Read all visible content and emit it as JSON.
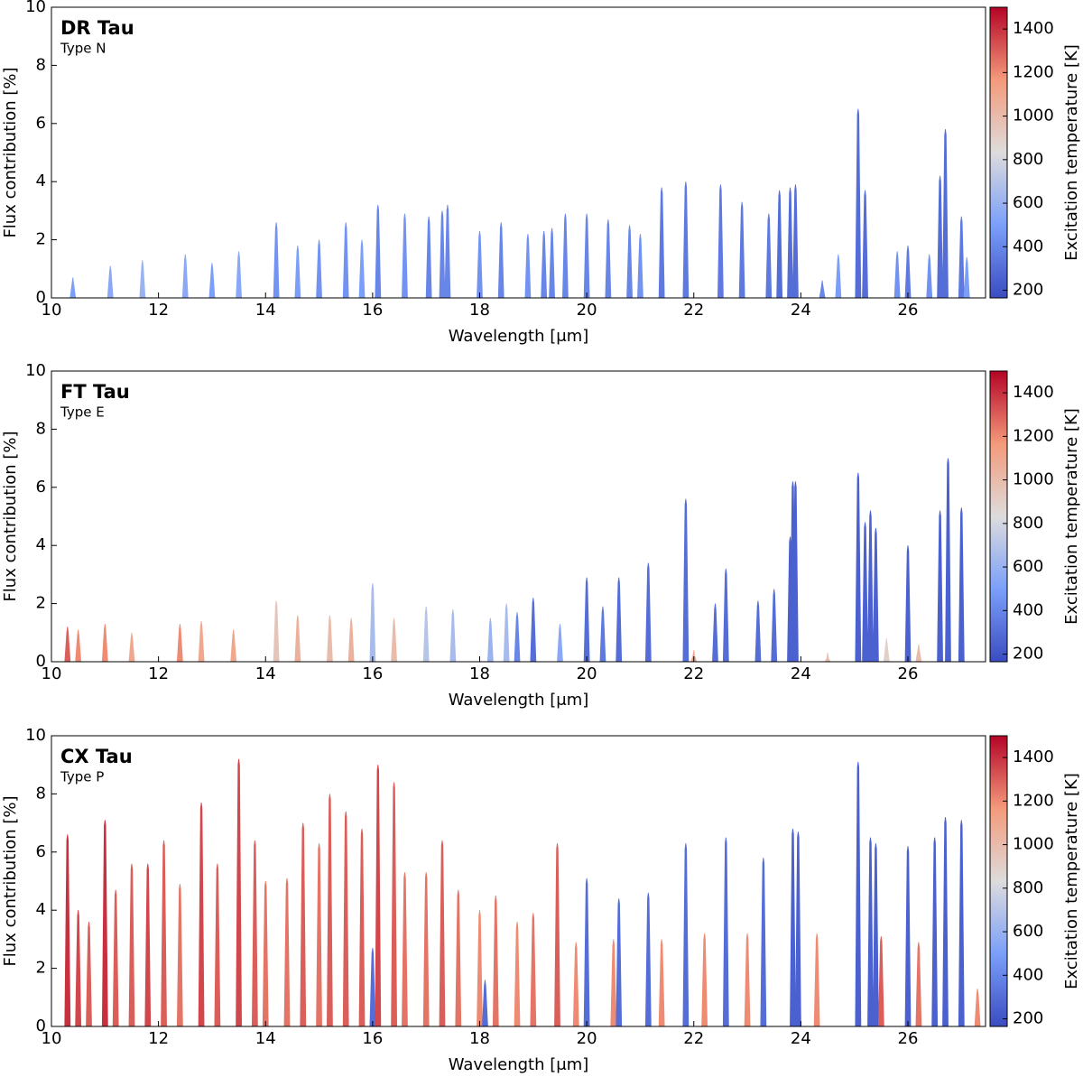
{
  "chart_data": [
    {
      "type": "spectrum",
      "title": "DR Tau",
      "subtitle": "Type N",
      "x_label": "Wavelength [μm]",
      "y_label": "Flux contribution [%]",
      "colorbar_label": "Excitation temperature [K]",
      "xlim": [
        10,
        27.45
      ],
      "xticks": [
        10,
        12,
        14,
        16,
        18,
        20,
        22,
        24,
        26
      ],
      "ylim": [
        0,
        10
      ],
      "yticks": [
        0,
        2,
        4,
        6,
        8,
        10
      ],
      "clim": [
        165,
        1500
      ],
      "cticks": [
        200,
        400,
        600,
        800,
        1000,
        1200,
        1400
      ],
      "colormap": [
        "#3b4cc0",
        "#7b9ff9",
        "#dddcdc",
        "#f49a7b",
        "#b40426"
      ],
      "x": [
        10.4,
        11.1,
        11.7,
        12.5,
        13.0,
        13.5,
        14.2,
        14.6,
        15.0,
        15.5,
        15.8,
        16.1,
        16.6,
        17.05,
        17.3,
        17.4,
        18.0,
        18.4,
        18.9,
        19.2,
        19.35,
        19.6,
        20.0,
        20.4,
        20.8,
        21.0,
        21.4,
        21.85,
        22.5,
        22.9,
        23.4,
        23.6,
        23.8,
        23.9,
        24.4,
        24.7,
        25.07,
        25.2,
        25.8,
        26.0,
        26.4,
        26.6,
        26.7,
        27.0,
        27.1
      ],
      "values": [
        0.7,
        1.1,
        1.3,
        1.5,
        1.2,
        1.6,
        2.6,
        1.8,
        2.0,
        2.6,
        2.0,
        3.2,
        2.9,
        2.8,
        3.0,
        3.2,
        2.3,
        2.6,
        2.2,
        2.3,
        2.4,
        2.9,
        2.9,
        2.7,
        2.5,
        2.2,
        3.8,
        4.0,
        3.9,
        3.3,
        2.9,
        3.7,
        3.8,
        3.9,
        0.6,
        1.5,
        6.5,
        3.7,
        1.6,
        1.8,
        1.5,
        4.2,
        5.8,
        2.8,
        1.4
      ],
      "temperature": [
        500,
        550,
        600,
        550,
        500,
        550,
        450,
        500,
        450,
        450,
        500,
        400,
        450,
        400,
        400,
        400,
        450,
        400,
        450,
        400,
        400,
        400,
        400,
        400,
        400,
        450,
        350,
        350,
        350,
        350,
        350,
        300,
        300,
        300,
        400,
        500,
        300,
        300,
        450,
        350,
        450,
        300,
        300,
        350,
        500
      ]
    },
    {
      "type": "spectrum",
      "title": "FT Tau",
      "subtitle": "Type E",
      "x_label": "Wavelength [μm]",
      "y_label": "Flux contribution [%]",
      "colorbar_label": "Excitation temperature [K]",
      "xlim": [
        10,
        27.45
      ],
      "xticks": [
        10,
        12,
        14,
        16,
        18,
        20,
        22,
        24,
        26
      ],
      "ylim": [
        0,
        10
      ],
      "yticks": [
        0,
        2,
        4,
        6,
        8,
        10
      ],
      "clim": [
        165,
        1500
      ],
      "cticks": [
        200,
        400,
        600,
        800,
        1000,
        1200,
        1400
      ],
      "colormap": [
        "#3b4cc0",
        "#7b9ff9",
        "#dddcdc",
        "#f49a7b",
        "#b40426"
      ],
      "x": [
        10.3,
        10.5,
        11.0,
        11.5,
        12.4,
        12.8,
        13.4,
        14.2,
        14.6,
        15.2,
        15.6,
        16.0,
        16.4,
        17.0,
        17.5,
        18.2,
        18.5,
        18.7,
        19.0,
        19.5,
        20.0,
        20.3,
        20.6,
        21.15,
        21.85,
        22.0,
        22.4,
        22.6,
        23.2,
        23.5,
        23.8,
        23.85,
        23.9,
        24.5,
        25.07,
        25.2,
        25.3,
        25.4,
        25.6,
        26.0,
        26.2,
        26.6,
        26.75,
        27.0
      ],
      "values": [
        1.2,
        1.1,
        1.3,
        1.0,
        1.3,
        1.4,
        1.1,
        2.1,
        1.6,
        1.6,
        1.5,
        2.7,
        1.5,
        1.9,
        1.8,
        1.5,
        2.0,
        1.7,
        2.2,
        1.3,
        2.9,
        1.9,
        2.9,
        3.4,
        5.6,
        0.4,
        2.0,
        3.2,
        2.1,
        2.5,
        4.3,
        6.2,
        6.2,
        0.3,
        6.5,
        4.8,
        5.2,
        4.6,
        0.8,
        4.0,
        0.6,
        5.2,
        7.0,
        5.3
      ],
      "temperature": [
        1300,
        1200,
        1200,
        1100,
        1200,
        1100,
        1100,
        950,
        1050,
        1000,
        1050,
        650,
        1000,
        700,
        650,
        600,
        650,
        400,
        300,
        550,
        300,
        350,
        300,
        300,
        300,
        1100,
        300,
        300,
        300,
        300,
        250,
        250,
        250,
        1000,
        250,
        250,
        250,
        250,
        900,
        250,
        1000,
        250,
        250,
        250
      ]
    },
    {
      "type": "spectrum",
      "title": "CX Tau",
      "subtitle": "Type P",
      "x_label": "Wavelength [μm]",
      "y_label": "Flux contribution [%]",
      "colorbar_label": "Excitation temperature [K]",
      "xlim": [
        10,
        27.45
      ],
      "xticks": [
        10,
        12,
        14,
        16,
        18,
        20,
        22,
        24,
        26
      ],
      "ylim": [
        0,
        10
      ],
      "yticks": [
        0,
        2,
        4,
        6,
        8,
        10
      ],
      "clim": [
        165,
        1500
      ],
      "cticks": [
        200,
        400,
        600,
        800,
        1000,
        1200,
        1400
      ],
      "colormap": [
        "#3b4cc0",
        "#7b9ff9",
        "#dddcdc",
        "#f49a7b",
        "#b40426"
      ],
      "x": [
        10.3,
        10.5,
        10.7,
        11.0,
        11.2,
        11.5,
        11.8,
        12.1,
        12.4,
        12.8,
        13.1,
        13.5,
        13.8,
        14.0,
        14.4,
        14.7,
        15.0,
        15.2,
        15.5,
        15.8,
        16.0,
        16.1,
        16.4,
        16.6,
        17.0,
        17.3,
        17.6,
        18.0,
        18.1,
        18.3,
        18.7,
        19.0,
        19.45,
        19.8,
        20.0,
        20.5,
        20.6,
        21.15,
        21.4,
        21.85,
        22.2,
        22.6,
        23.0,
        23.3,
        23.85,
        23.95,
        24.3,
        25.07,
        25.3,
        25.4,
        25.5,
        26.0,
        26.2,
        26.5,
        26.7,
        27.0,
        27.3
      ],
      "values": [
        6.6,
        4.0,
        3.6,
        7.1,
        4.7,
        5.6,
        5.6,
        6.4,
        4.9,
        7.7,
        5.6,
        9.2,
        6.4,
        5.0,
        5.1,
        7.0,
        6.3,
        8.0,
        7.4,
        6.8,
        2.7,
        9.0,
        8.4,
        5.3,
        5.3,
        6.4,
        4.7,
        4.0,
        1.6,
        4.5,
        3.6,
        3.9,
        6.3,
        2.9,
        5.1,
        3.0,
        4.4,
        4.6,
        3.0,
        6.3,
        3.2,
        6.5,
        3.2,
        5.8,
        6.8,
        6.7,
        3.2,
        9.1,
        6.5,
        6.3,
        3.1,
        6.2,
        2.9,
        6.5,
        7.2,
        7.1,
        1.3
      ],
      "temperature": [
        1400,
        1350,
        1300,
        1400,
        1300,
        1300,
        1350,
        1300,
        1250,
        1350,
        1300,
        1350,
        1300,
        1250,
        1250,
        1300,
        1250,
        1300,
        1300,
        1300,
        300,
        1350,
        1300,
        1250,
        1250,
        1300,
        1250,
        1200,
        300,
        1250,
        1200,
        1250,
        1300,
        1200,
        300,
        1200,
        300,
        300,
        1200,
        300,
        1200,
        300,
        1200,
        300,
        250,
        250,
        1200,
        250,
        250,
        250,
        1300,
        250,
        1250,
        250,
        250,
        250,
        1200
      ]
    }
  ]
}
